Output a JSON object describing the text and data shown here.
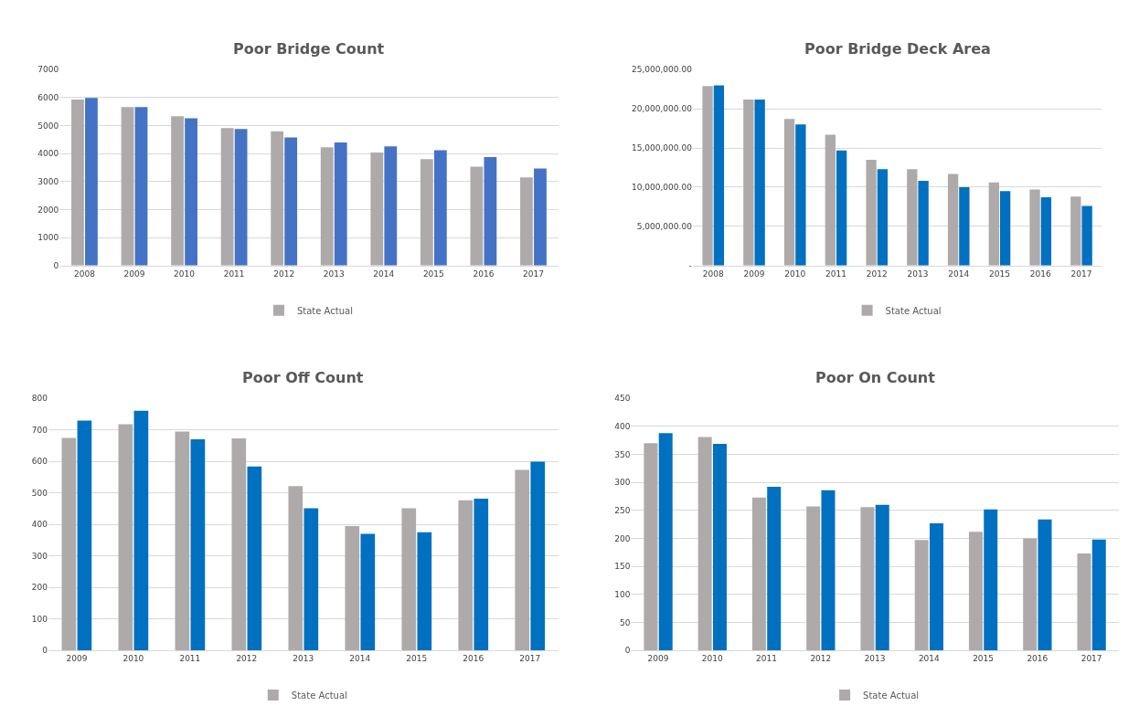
{
  "chart_data": [
    {
      "type": "bar",
      "title": "Poor Bridge Count",
      "categories": [
        "2008",
        "2009",
        "2010",
        "2011",
        "2012",
        "2013",
        "2014",
        "2015",
        "2016",
        "2017"
      ],
      "series": [
        {
          "name": "State Actual",
          "color": "#aeaaaa",
          "values": [
            5930,
            5660,
            5340,
            4910,
            4800,
            4230,
            4040,
            3800,
            3530,
            3150
          ]
        },
        {
          "color": "#4472c4",
          "values": [
            5990,
            5660,
            5260,
            4880,
            4580,
            4400,
            4260,
            4120,
            3880,
            3470
          ]
        }
      ],
      "ylim": [
        0,
        7000
      ],
      "yticks": [
        0,
        1000,
        2000,
        3000,
        4000,
        5000,
        6000,
        7000
      ],
      "grid": "y",
      "legend": "bottom"
    },
    {
      "type": "bar",
      "title": "Poor Bridge Deck Area",
      "categories": [
        "2008",
        "2009",
        "2010",
        "2011",
        "2012",
        "2013",
        "2014",
        "2015",
        "2016",
        "2017"
      ],
      "series": [
        {
          "name": "State Actual",
          "color": "#aeaaaa",
          "values": [
            22900000,
            21200000,
            18700000,
            16700000,
            13500000,
            12300000,
            11700000,
            10600000,
            9700000,
            8800000
          ]
        },
        {
          "color": "#0070c0",
          "values": [
            23000000,
            21200000,
            18000000,
            14700000,
            12300000,
            10800000,
            10000000,
            9500000,
            8700000,
            7600000
          ]
        }
      ],
      "ylim": [
        0,
        25000000
      ],
      "yticks": [
        {
          "value": 0,
          "label": "-"
        },
        {
          "value": 5000000,
          "label": "5,000,000.00"
        },
        {
          "value": 10000000,
          "label": "10,000,000.00"
        },
        {
          "value": 15000000,
          "label": "15,000,000.00"
        },
        {
          "value": 20000000,
          "label": "20,000,000.00"
        },
        {
          "value": 25000000,
          "label": "25,000,000.00"
        }
      ],
      "grid": "y",
      "legend": "bottom"
    },
    {
      "type": "bar",
      "title": "Poor Off Count",
      "categories": [
        "2009",
        "2010",
        "2011",
        "2012",
        "2013",
        "2014",
        "2015",
        "2016",
        "2017"
      ],
      "series": [
        {
          "name": "State Actual",
          "color": "#aeaaaa",
          "values": [
            675,
            718,
            695,
            673,
            522,
            395,
            451,
            477,
            573
          ]
        },
        {
          "color": "#0070c0",
          "values": [
            730,
            761,
            670,
            584,
            451,
            370,
            375,
            482,
            599
          ]
        }
      ],
      "ylim": [
        0,
        800
      ],
      "yticks": [
        0,
        100,
        200,
        300,
        400,
        500,
        600,
        700,
        800
      ],
      "grid": "y",
      "legend": "bottom"
    },
    {
      "type": "bar",
      "title": "Poor On Count",
      "categories": [
        "2009",
        "2010",
        "2011",
        "2012",
        "2013",
        "2014",
        "2015",
        "2016",
        "2017"
      ],
      "series": [
        {
          "name": "State Actual",
          "color": "#aeaaaa",
          "values": [
            370,
            381,
            273,
            257,
            256,
            197,
            212,
            200,
            173
          ]
        },
        {
          "color": "#0070c0",
          "values": [
            388,
            369,
            292,
            286,
            260,
            227,
            252,
            234,
            198
          ]
        }
      ],
      "ylim": [
        0,
        450
      ],
      "yticks": [
        0,
        50,
        100,
        150,
        200,
        250,
        300,
        350,
        400,
        450
      ],
      "grid": "y",
      "legend": "bottom"
    }
  ]
}
